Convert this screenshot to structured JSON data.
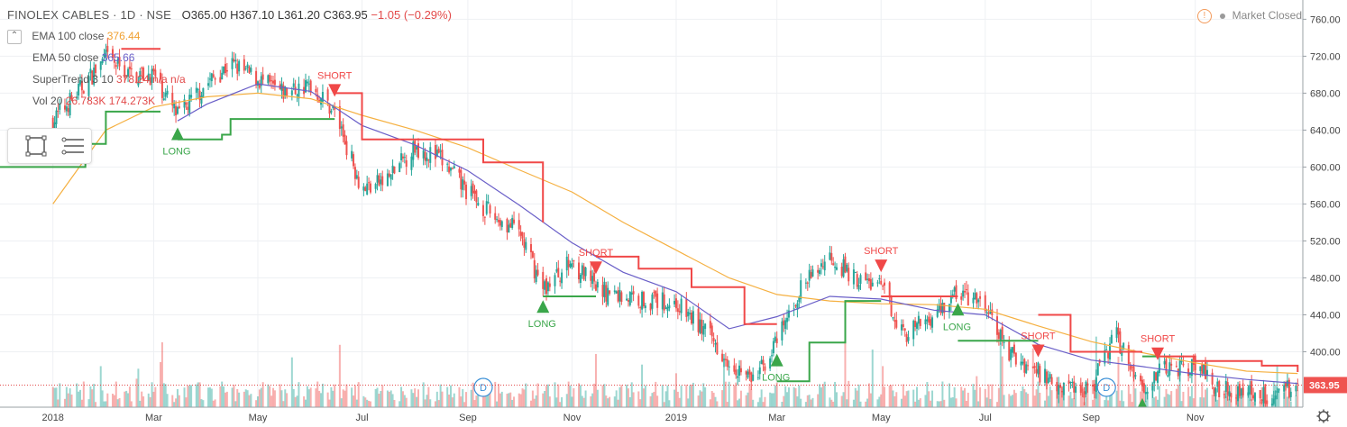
{
  "header": {
    "title": "FINOLEX CABLES · 1D · NSE",
    "open": "O365.00",
    "high": "H367.10",
    "low": "L361.20",
    "close": "C363.95",
    "change": "−1.05 (−0.29%)"
  },
  "legend": [
    {
      "label": "EMA 100 close",
      "value": "376.44"
    },
    {
      "label": "EMA 50 close",
      "value": "365.66"
    },
    {
      "label": "SuperTrend 3 10",
      "value": "378.24  n/a  n/a"
    },
    {
      "label": "Vol 20",
      "value": "26.783K   174.273K"
    }
  ],
  "market_status": "Market Closed",
  "last_price_label": "363.95",
  "colors": {
    "up": "#26a69a",
    "down": "#ef5350",
    "ema100": "#f5b041",
    "ema50": "#6a5fc8",
    "supertrend_up": "#3aa64a",
    "supertrend_down": "#f04848",
    "grid": "#eef0f3"
  },
  "chart_data": {
    "type": "line",
    "title": "FINOLEX CABLES · 1D · NSE",
    "y_axis": {
      "ticks": [
        760,
        720,
        680,
        640,
        600,
        560,
        520,
        480,
        440,
        400
      ],
      "range": [
        340,
        775
      ],
      "side": "right"
    },
    "x_axis": {
      "ticks": [
        "2018",
        "Mar",
        "May",
        "Jul",
        "Sep",
        "Nov",
        "2019",
        "Mar",
        "May",
        "Jul",
        "Sep",
        "Nov"
      ]
    },
    "grid": true,
    "series": [
      {
        "name": "EMA 100 close",
        "values": [
          [
            "2018-01-01",
            560
          ],
          [
            "2018-02-01",
            640
          ],
          [
            "2018-03-01",
            665
          ],
          [
            "2018-04-01",
            676
          ],
          [
            "2018-05-01",
            680
          ],
          [
            "2018-06-01",
            674
          ],
          [
            "2018-07-01",
            656
          ],
          [
            "2018-08-01",
            640
          ],
          [
            "2018-09-01",
            621
          ],
          [
            "2018-10-01",
            597
          ],
          [
            "2018-11-01",
            573
          ],
          [
            "2018-12-01",
            540
          ],
          [
            "2019-01-01",
            510
          ],
          [
            "2019-02-01",
            480
          ],
          [
            "2019-03-01",
            462
          ],
          [
            "2019-04-01",
            455
          ],
          [
            "2019-05-01",
            452
          ],
          [
            "2019-06-01",
            451
          ],
          [
            "2019-07-01",
            446
          ],
          [
            "2019-08-01",
            428
          ],
          [
            "2019-09-01",
            411
          ],
          [
            "2019-10-01",
            399
          ],
          [
            "2019-11-01",
            388
          ],
          [
            "2019-12-01",
            379
          ],
          [
            "2019-12-31",
            376.44
          ]
        ]
      },
      {
        "name": "EMA 50 close",
        "values": [
          [
            "2018-03-15",
            650
          ],
          [
            "2018-04-01",
            668
          ],
          [
            "2018-05-01",
            690
          ],
          [
            "2018-06-01",
            682
          ],
          [
            "2018-07-01",
            645
          ],
          [
            "2018-08-01",
            624
          ],
          [
            "2018-09-01",
            596
          ],
          [
            "2018-10-01",
            559
          ],
          [
            "2018-11-01",
            518
          ],
          [
            "2018-12-01",
            486
          ],
          [
            "2019-01-01",
            465
          ],
          [
            "2019-02-01",
            425
          ],
          [
            "2019-03-01",
            438
          ],
          [
            "2019-04-01",
            460
          ],
          [
            "2019-05-01",
            457
          ],
          [
            "2019-06-01",
            445
          ],
          [
            "2019-07-01",
            440
          ],
          [
            "2019-08-01",
            408
          ],
          [
            "2019-09-01",
            391
          ],
          [
            "2019-10-01",
            384
          ],
          [
            "2019-11-01",
            376
          ],
          [
            "2019-12-01",
            370
          ],
          [
            "2019-12-31",
            365.66
          ]
        ]
      },
      {
        "name": "SuperTrend 3 10",
        "values": "stepped trailing stop, alternating between LONG and SHORT regimes"
      }
    ],
    "price_points": [
      [
        "2018-01-01",
        650
      ],
      [
        "2018-01-15",
        680
      ],
      [
        "2018-02-01",
        718
      ],
      [
        "2018-02-15",
        700
      ],
      [
        "2018-03-01",
        700
      ],
      [
        "2018-03-15",
        655
      ],
      [
        "2018-04-01",
        690
      ],
      [
        "2018-04-15",
        712
      ],
      [
        "2018-05-01",
        695
      ],
      [
        "2018-05-15",
        680
      ],
      [
        "2018-06-01",
        688
      ],
      [
        "2018-06-15",
        660
      ],
      [
        "2018-07-01",
        577
      ],
      [
        "2018-07-15",
        585
      ],
      [
        "2018-08-01",
        622
      ],
      [
        "2018-08-15",
        610
      ],
      [
        "2018-09-01",
        573
      ],
      [
        "2018-09-15",
        548
      ],
      [
        "2018-10-01",
        530
      ],
      [
        "2018-10-15",
        468
      ],
      [
        "2018-11-01",
        498
      ],
      [
        "2018-11-15",
        468
      ],
      [
        "2018-12-01",
        460
      ],
      [
        "2018-12-15",
        456
      ],
      [
        "2019-01-01",
        452
      ],
      [
        "2019-01-15",
        428
      ],
      [
        "2019-02-01",
        392
      ],
      [
        "2019-02-15",
        368
      ],
      [
        "2019-03-01",
        410
      ],
      [
        "2019-03-15",
        468
      ],
      [
        "2019-04-01",
        505
      ],
      [
        "2019-04-15",
        480
      ],
      [
        "2019-05-01",
        470
      ],
      [
        "2019-05-15",
        418
      ],
      [
        "2019-06-01",
        440
      ],
      [
        "2019-06-15",
        465
      ],
      [
        "2019-07-01",
        448
      ],
      [
        "2019-07-15",
        398
      ],
      [
        "2019-08-01",
        378
      ],
      [
        "2019-08-15",
        364
      ],
      [
        "2019-09-01",
        360
      ],
      [
        "2019-09-15",
        420
      ],
      [
        "2019-10-01",
        362
      ],
      [
        "2019-10-15",
        382
      ],
      [
        "2019-11-01",
        385
      ],
      [
        "2019-11-15",
        360
      ],
      [
        "2019-12-01",
        358
      ],
      [
        "2019-12-15",
        352
      ],
      [
        "2019-12-31",
        363.95
      ]
    ],
    "signals": [
      {
        "type": "LONG",
        "date": "2018-03-15"
      },
      {
        "type": "SHORT",
        "date": "2018-06-15"
      },
      {
        "type": "LONG",
        "date": "2018-10-15"
      },
      {
        "type": "SHORT",
        "date": "2018-11-15"
      },
      {
        "type": "LONG",
        "date": "2019-03-01"
      },
      {
        "type": "SHORT",
        "date": "2019-05-01"
      },
      {
        "type": "LONG",
        "date": "2019-06-15"
      },
      {
        "type": "SHORT",
        "date": "2019-08-01"
      },
      {
        "type": "LONG",
        "date": "2019-10-01"
      },
      {
        "type": "SHORT",
        "date": "2019-10-10"
      }
    ],
    "dividend_markers": [
      {
        "label": "D",
        "date": "2018-09-10"
      },
      {
        "label": "D",
        "date": "2019-09-10"
      }
    ],
    "volume_scale": {
      "max": 210000
    }
  }
}
